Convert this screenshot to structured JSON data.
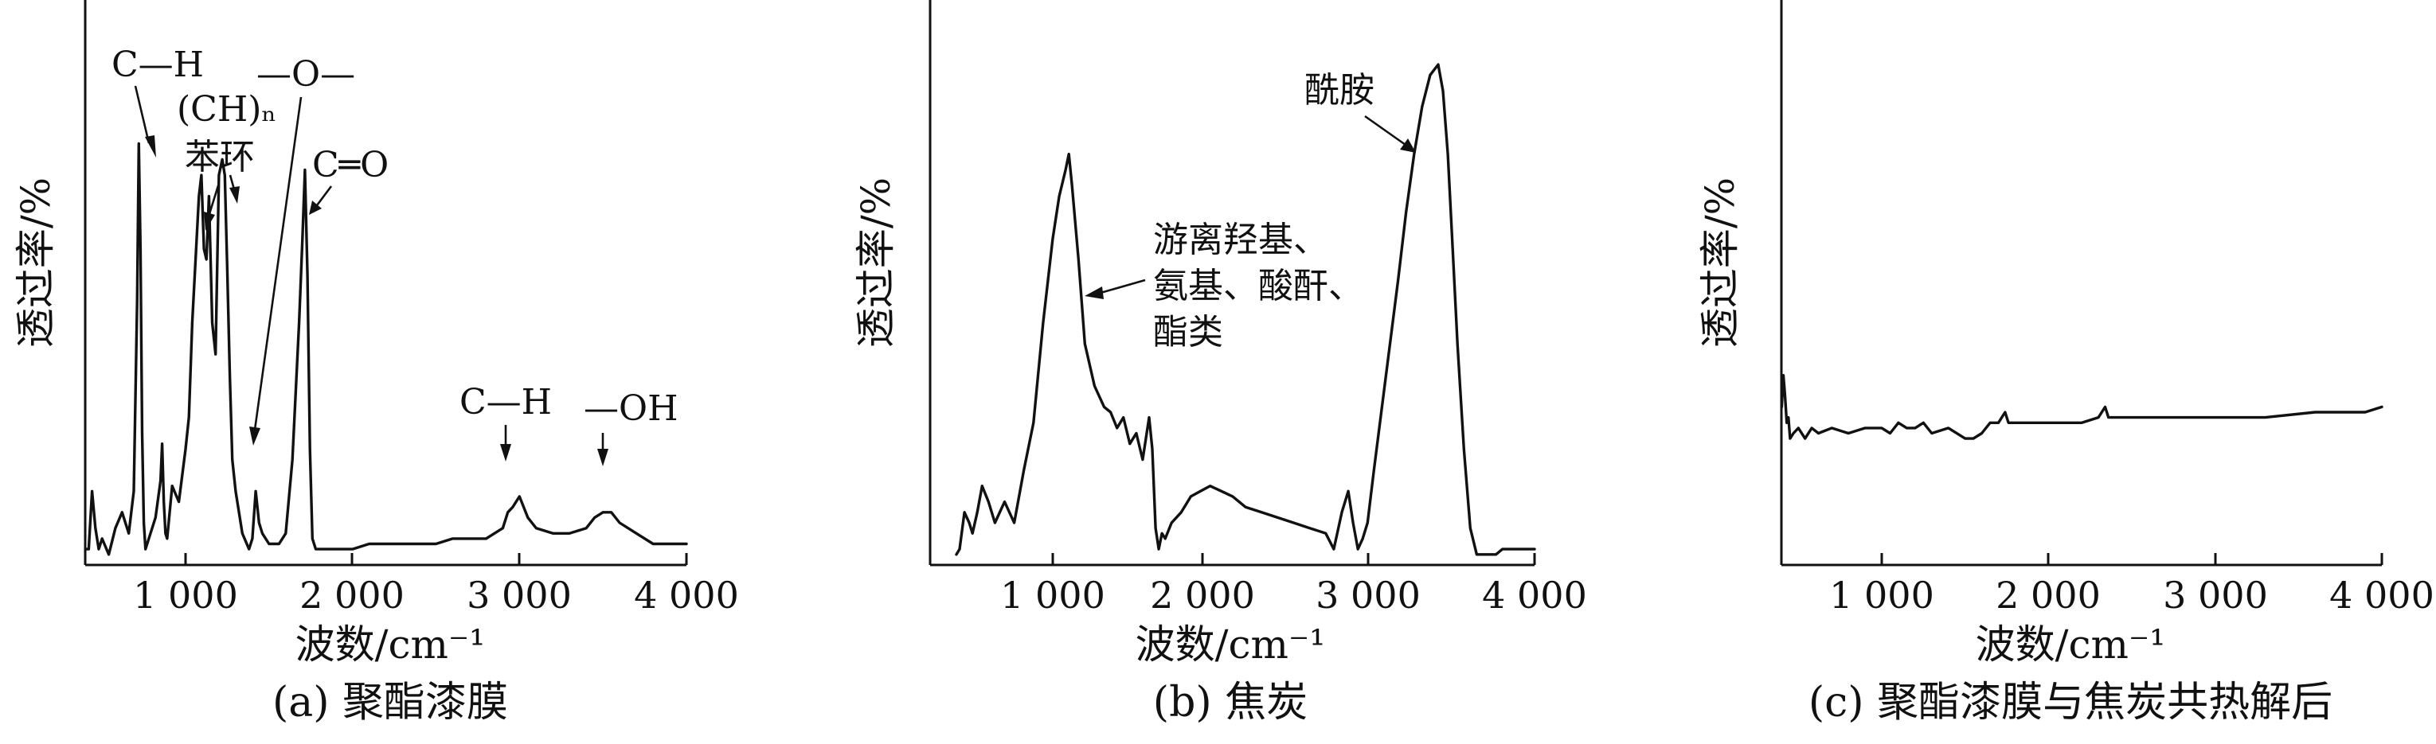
{
  "figure": {
    "panels": [
      {
        "id": "a",
        "caption": "(a) 聚酯漆膜",
        "ylabel": "透过率/%",
        "xlabel": "波数/cm⁻¹",
        "ticks": [
          "1 000",
          "2 000",
          "3 000",
          "4 000"
        ],
        "annotations": [
          "C—H",
          "(CH)ₙ",
          "苯环",
          "—O—",
          "C═O",
          "C—H",
          "—OH"
        ]
      },
      {
        "id": "b",
        "caption": "(b) 焦炭",
        "ylabel": "透过率/%",
        "xlabel": "波数/cm⁻¹",
        "ticks": [
          "1 000",
          "2 000",
          "3 000",
          "4 000"
        ],
        "annotations": [
          "酰胺",
          "游离羟基、",
          "氨基、酸酐、",
          "酯类"
        ]
      },
      {
        "id": "c",
        "caption": "(c) 聚酯漆膜与焦炭共热解后",
        "ylabel": "透过率/%",
        "xlabel": "波数/cm⁻¹",
        "ticks": [
          "1 000",
          "2 000",
          "3 000",
          "4 000"
        ],
        "annotations": []
      }
    ]
  },
  "chart_data": [
    {
      "type": "line",
      "title": "(a) 聚酯漆膜",
      "xlabel": "波数/cm⁻¹",
      "ylabel": "透过率/%",
      "xlim": [
        400,
        4000
      ],
      "ylim": [
        0,
        100
      ],
      "ytick_labels_shown": false,
      "grid": false,
      "series": [
        {
          "x": [
            400,
            420,
            440,
            460,
            480,
            500,
            540,
            580,
            620,
            660,
            690,
            710,
            720,
            730,
            740,
            750,
            760,
            780,
            820,
            850,
            860,
            870,
            880,
            890,
            920,
            960,
            1000,
            1020,
            1040,
            1060,
            1080,
            1095,
            1110,
            1125,
            1140,
            1160,
            1180,
            1200,
            1220,
            1235,
            1250,
            1265,
            1280,
            1300,
            1340,
            1380,
            1400,
            1420,
            1440,
            1460,
            1500,
            1560,
            1600,
            1640,
            1680,
            1700,
            1715,
            1730,
            1745,
            1760,
            1780,
            1800,
            1900,
            2000,
            2100,
            2200,
            2300,
            2400,
            2500,
            2600,
            2700,
            2800,
            2850,
            2900,
            2930,
            2960,
            3000,
            3050,
            3100,
            3200,
            3300,
            3400,
            3450,
            3500,
            3550,
            3600,
            3700,
            3800,
            3900,
            4000
          ],
          "y": [
            3,
            3,
            14,
            7,
            3,
            5,
            2,
            7,
            10,
            6,
            14,
            50,
            80,
            60,
            25,
            8,
            3,
            5,
            9,
            16,
            23,
            12,
            6,
            5,
            15,
            12,
            22,
            28,
            46,
            58,
            70,
            74,
            60,
            58,
            70,
            46,
            40,
            74,
            77,
            74,
            56,
            36,
            20,
            14,
            6,
            3,
            5,
            14,
            8,
            6,
            4,
            4,
            6,
            20,
            46,
            62,
            75,
            55,
            22,
            5,
            3,
            3,
            3,
            3,
            4,
            4,
            4,
            4,
            4,
            5,
            5,
            5,
            6,
            7,
            10,
            11,
            13,
            9,
            7,
            6,
            6,
            7,
            9,
            10,
            10,
            8,
            6,
            4,
            4,
            4
          ]
        }
      ]
    },
    {
      "type": "line",
      "title": "(b) 焦炭",
      "xlabel": "波数/cm⁻¹",
      "ylabel": "透过率/%",
      "xlim": [
        400,
        4000
      ],
      "ylim": [
        0,
        100
      ],
      "ytick_labels_shown": false,
      "grid": false,
      "series": [
        {
          "x": [
            400,
            420,
            450,
            480,
            500,
            530,
            560,
            600,
            640,
            700,
            760,
            820,
            880,
            940,
            1000,
            1040,
            1080,
            1100,
            1120,
            1160,
            1200,
            1260,
            1320,
            1360,
            1400,
            1440,
            1480,
            1520,
            1560,
            1600,
            1620,
            1640,
            1660,
            1680,
            1700,
            1740,
            1800,
            1860,
            1920,
            1980,
            2050,
            2120,
            2200,
            2300,
            2400,
            2500,
            2600,
            2700,
            2750,
            2800,
            2840,
            2870,
            2900,
            2930,
            2960,
            3000,
            3050,
            3100,
            3150,
            3200,
            3250,
            3300,
            3350,
            3400,
            3430,
            3460,
            3490,
            3520,
            3560,
            3600,
            3640,
            3680,
            3720,
            3760,
            3800,
            3850,
            3900,
            3950,
            4000
          ],
          "y": [
            2,
            3,
            10,
            8,
            6,
            10,
            15,
            12,
            8,
            12,
            8,
            18,
            27,
            46,
            62,
            70,
            75,
            78,
            72,
            58,
            42,
            34,
            30,
            29,
            26,
            28,
            23,
            25,
            20,
            28,
            22,
            7,
            3,
            6,
            5,
            8,
            10,
            13,
            14,
            15,
            14,
            13,
            11,
            10,
            9,
            8,
            7,
            6,
            3,
            10,
            14,
            8,
            3,
            5,
            8,
            18,
            30,
            42,
            54,
            67,
            78,
            87,
            93,
            95,
            90,
            78,
            60,
            42,
            22,
            7,
            2,
            2,
            2,
            2,
            3,
            3,
            3,
            3,
            3
          ]
        }
      ]
    },
    {
      "type": "line",
      "title": "(c) 聚酯漆膜与焦炭共热解后",
      "xlabel": "波数/cm⁻¹",
      "ylabel": "透过率/%",
      "xlim": [
        400,
        4000
      ],
      "ylim": [
        0,
        100
      ],
      "ytick_labels_shown": false,
      "grid": false,
      "series": [
        {
          "x": [
            400,
            410,
            420,
            430,
            440,
            450,
            470,
            500,
            540,
            580,
            620,
            700,
            800,
            900,
            1000,
            1050,
            1100,
            1150,
            1200,
            1250,
            1300,
            1400,
            1500,
            1550,
            1600,
            1650,
            1700,
            1720,
            1740,
            1760,
            1800,
            1900,
            2000,
            2100,
            2200,
            2300,
            2320,
            2340,
            2360,
            2400,
            2500,
            2700,
            3000,
            3300,
            3600,
            3700,
            3800,
            3900,
            4000
          ],
          "y": [
            30,
            36,
            32,
            27,
            28,
            24,
            25,
            26,
            24,
            26,
            25,
            26,
            25,
            26,
            26,
            25,
            27,
            26,
            26,
            27,
            25,
            26,
            24,
            24,
            25,
            27,
            27,
            28,
            29,
            27,
            27,
            27,
            27,
            27,
            27,
            28,
            29,
            30,
            28,
            28,
            28,
            28,
            28,
            28,
            29,
            29,
            29,
            29,
            30
          ]
        }
      ]
    }
  ]
}
